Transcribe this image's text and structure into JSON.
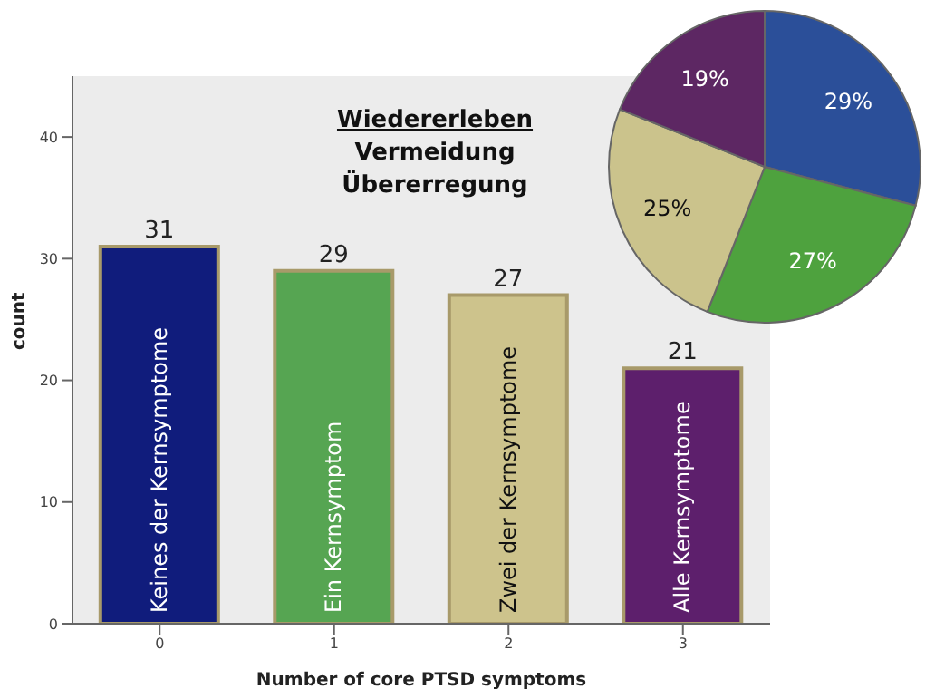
{
  "chart_data": [
    {
      "type": "bar",
      "xlabel": "Number of core PTSD symptoms",
      "ylabel": "count",
      "categories": [
        "0",
        "1",
        "2",
        "3"
      ],
      "values": [
        31,
        29,
        27,
        21
      ],
      "colors": [
        "#101c7c",
        "#56a552",
        "#cdc38c",
        "#5d1f6c"
      ],
      "ylim": [
        0,
        45
      ],
      "yticks": [
        0,
        10,
        20,
        30,
        40
      ],
      "data_labels": true,
      "annotations": [
        "Keines der Kernsymptome",
        "Ein Kernsymptom",
        "Zwei der Kernsymptome",
        "Alle Kernsymptome",
        "Wiedererleben",
        "Vermeidung",
        "Übererregung"
      ]
    },
    {
      "type": "pie",
      "categories": [
        null,
        null,
        null,
        null
      ],
      "values": [
        29,
        27,
        25,
        19
      ],
      "colors": [
        "#2b4f99",
        "#4ea23e",
        "#cbc38c",
        "#5d2763"
      ],
      "value_labels": [
        "29%",
        "27%",
        "25%",
        "19%"
      ]
    }
  ]
}
